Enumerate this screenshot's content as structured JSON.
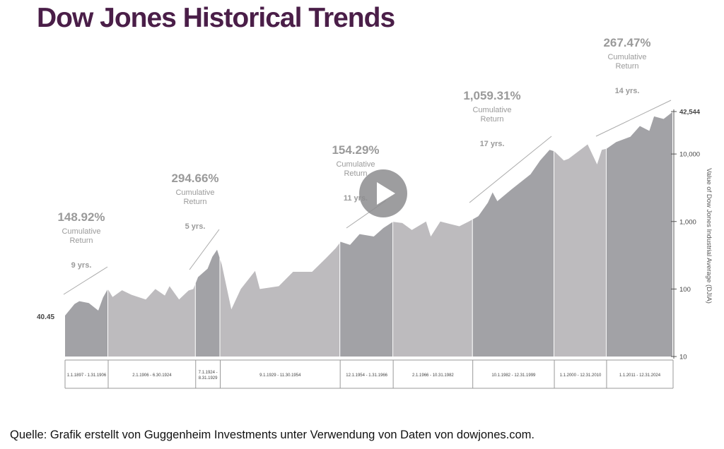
{
  "header": {
    "title": "Dow Jones Historical Trends"
  },
  "footer": {
    "source": "Quelle: Grafik erstellt von Guggenheim Investments unter Verwendung von Daten von dowjones.com."
  },
  "colors": {
    "bull": "#a2a2a6",
    "bear": "#bdbbbe",
    "annotation": "#9a9a9a",
    "axis": "#555555",
    "title": "#4a1e48"
  },
  "video": {
    "play_icon": "play-icon"
  },
  "chart_data": {
    "type": "area",
    "y_scale": "log",
    "ylabel": "Value of Dow Jones Industrial Average (DJIA)",
    "ylim": [
      10,
      42544
    ],
    "y_ticks": [
      {
        "value": 42544,
        "label": "42,544"
      },
      {
        "value": 10000,
        "label": "10,000"
      },
      {
        "value": 1000,
        "label": "1,000"
      },
      {
        "value": 100,
        "label": "100"
      },
      {
        "value": 10,
        "label": "10"
      }
    ],
    "start_label": {
      "value": 40.45,
      "label": "40.45"
    },
    "periods": [
      {
        "label": "1.1.1897 - 1.31.1906",
        "start": 1897.0,
        "end": 1906.08,
        "kind": "bull"
      },
      {
        "label": "2.1.1906 - 6.30.1924",
        "start": 1906.08,
        "end": 1924.5,
        "kind": "bear"
      },
      {
        "label": "7.1.1924 - 8.31.1929",
        "start": 1924.5,
        "end": 1929.67,
        "kind": "bull"
      },
      {
        "label": "9.1.1929 - 11.30.1954",
        "start": 1929.67,
        "end": 1954.92,
        "kind": "bear"
      },
      {
        "label": "12.1.1954 - 1.31.1966",
        "start": 1954.92,
        "end": 1966.08,
        "kind": "bull"
      },
      {
        "label": "2.1.1966 - 10.31.1982",
        "start": 1966.08,
        "end": 1982.83,
        "kind": "bear"
      },
      {
        "label": "10.1.1982 - 12.31.1999",
        "start": 1982.83,
        "end": 2000.0,
        "kind": "bull"
      },
      {
        "label": "1.1.2000 - 12.31.2010",
        "start": 2000.0,
        "end": 2011.0,
        "kind": "bear"
      },
      {
        "label": "1.1.2011 - 12.31.2024",
        "start": 2011.0,
        "end": 2025.0,
        "kind": "bull"
      }
    ],
    "annotations": [
      {
        "return": "148.92%",
        "label": "Cumulative Return",
        "years": "9 yrs.",
        "period": 0
      },
      {
        "return": "294.66%",
        "label": "Cumulative Return",
        "years": "5 yrs.",
        "period": 2
      },
      {
        "return": "154.29%",
        "label": "Cumulative Return",
        "years": "11 yrs.",
        "period": 4
      },
      {
        "return": "1,059.31%",
        "label": "Cumulative Return",
        "years": "17 yrs.",
        "period": 6
      },
      {
        "return": "267.47%",
        "label": "Cumulative Return",
        "years": "14 yrs.",
        "period": 8
      }
    ],
    "series": [
      {
        "x": [
          1897,
          1899,
          1900,
          1902,
          1904,
          1905,
          1906,
          1907,
          1909,
          1911,
          1914,
          1916,
          1918,
          1919,
          1921,
          1923,
          1924,
          1925,
          1927,
          1928,
          1929,
          1930,
          1932,
          1934,
          1937,
          1938,
          1942,
          1945,
          1949,
          1952,
          1954,
          1955,
          1957,
          1959,
          1962,
          1964,
          1966,
          1968,
          1970,
          1973,
          1974,
          1976,
          1980,
          1982,
          1984,
          1986,
          1987,
          1988,
          1991,
          1995,
          1997,
          1999,
          2000,
          2002,
          2003,
          2007,
          2009,
          2010,
          2011,
          2013,
          2016,
          2018,
          2020,
          2021,
          2023,
          2025
        ],
        "y": [
          40.45,
          60,
          66,
          62,
          48,
          75,
          100,
          76,
          96,
          82,
          70,
          100,
          80,
          110,
          70,
          95,
          100,
          150,
          200,
          300,
          381,
          230,
          50,
          100,
          185,
          100,
          110,
          180,
          180,
          290,
          404,
          500,
          450,
          650,
          600,
          800,
          990,
          950,
          750,
          1000,
          600,
          1000,
          850,
          1000,
          1200,
          1900,
          2700,
          2000,
          3000,
          5000,
          8000,
          11500,
          11000,
          8000,
          8500,
          13900,
          7000,
          11500,
          12000,
          15000,
          18000,
          26000,
          22000,
          36000,
          33000,
          42544
        ]
      }
    ]
  }
}
